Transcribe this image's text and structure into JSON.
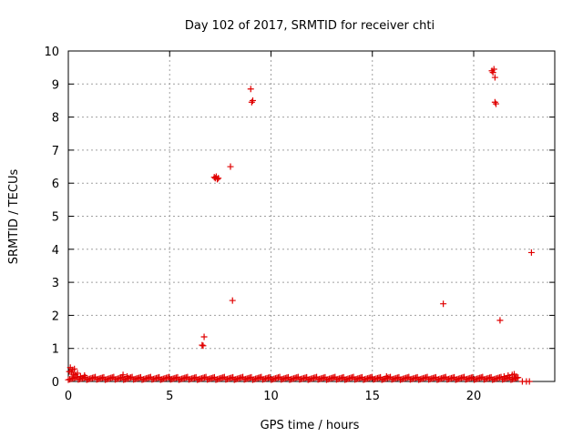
{
  "chart_data": {
    "type": "scatter",
    "title": "Day 102 of 2017, SRMTID for receiver chti",
    "xlabel": "GPS time / hours",
    "ylabel": "SRMTID / TECUs",
    "xlim": [
      0,
      24
    ],
    "ylim": [
      0,
      10
    ],
    "xticks": [
      0,
      5,
      10,
      15,
      20
    ],
    "yticks": [
      0,
      1,
      2,
      3,
      4,
      5,
      6,
      7,
      8,
      9,
      10
    ],
    "grid": true,
    "legend": "none",
    "marker": "plus",
    "color": "#e00000",
    "baseline": {
      "description": "dense band of near-zero values",
      "x_start": 0.0,
      "x_end": 22.2,
      "x_step": 0.07,
      "typical_y": 0.07
    },
    "series": [
      {
        "name": "SRMTID",
        "points": [
          [
            0.05,
            0.3
          ],
          [
            0.1,
            0.42
          ],
          [
            0.15,
            0.28
          ],
          [
            0.2,
            0.35
          ],
          [
            0.25,
            0.22
          ],
          [
            0.3,
            0.38
          ],
          [
            0.35,
            0.2
          ],
          [
            0.45,
            0.25
          ],
          [
            0.6,
            0.15
          ],
          [
            0.8,
            0.18
          ],
          [
            2.7,
            0.2
          ],
          [
            2.9,
            0.15
          ],
          [
            6.6,
            1.1
          ],
          [
            6.65,
            1.08
          ],
          [
            6.7,
            1.35
          ],
          [
            7.2,
            6.18
          ],
          [
            7.25,
            6.15
          ],
          [
            7.3,
            6.2
          ],
          [
            7.35,
            6.12
          ],
          [
            7.4,
            6.15
          ],
          [
            8.0,
            6.5
          ],
          [
            8.1,
            2.45
          ],
          [
            9.0,
            8.85
          ],
          [
            9.05,
            8.45
          ],
          [
            9.1,
            8.5
          ],
          [
            15.7,
            0.15
          ],
          [
            18.5,
            2.35
          ],
          [
            20.9,
            9.4
          ],
          [
            20.95,
            9.35
          ],
          [
            21.0,
            9.45
          ],
          [
            21.05,
            9.2
          ],
          [
            21.05,
            8.45
          ],
          [
            21.1,
            8.4
          ],
          [
            21.3,
            1.85
          ],
          [
            21.5,
            0.15
          ],
          [
            21.7,
            0.18
          ],
          [
            21.9,
            0.2
          ],
          [
            22.0,
            0.22
          ],
          [
            22.1,
            0.12
          ],
          [
            22.4,
            0.0
          ],
          [
            22.6,
            0.0
          ],
          [
            22.75,
            0.0
          ],
          [
            22.85,
            3.9
          ]
        ]
      }
    ]
  }
}
